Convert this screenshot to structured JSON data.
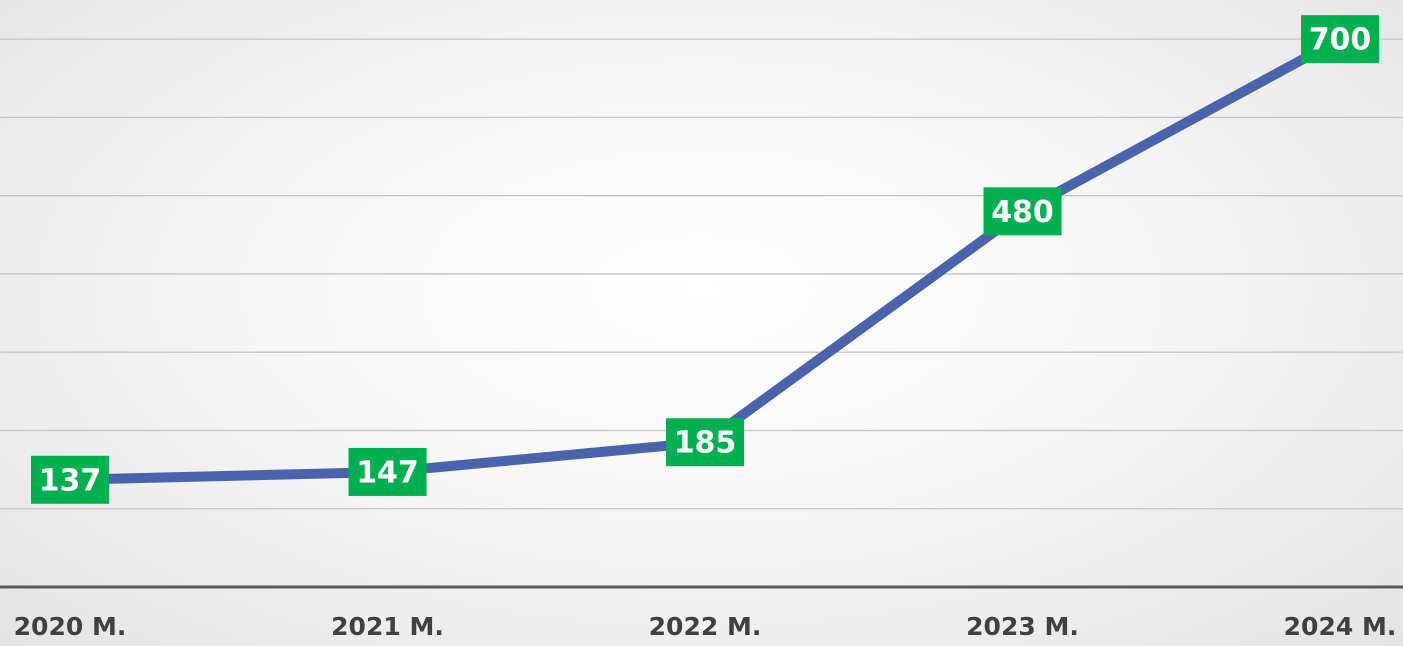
{
  "chart_data": {
    "type": "line",
    "categories": [
      "2020 M.",
      "2021 M.",
      "2022 M.",
      "2023 M.",
      "2024 M."
    ],
    "values": [
      137,
      147,
      185,
      480,
      700
    ],
    "color": "#4a63ad",
    "label_color": "#00b050",
    "ylim": [
      0,
      750
    ],
    "yticks": [
      0,
      100,
      200,
      300,
      400,
      500,
      600,
      700
    ],
    "grid": true
  }
}
